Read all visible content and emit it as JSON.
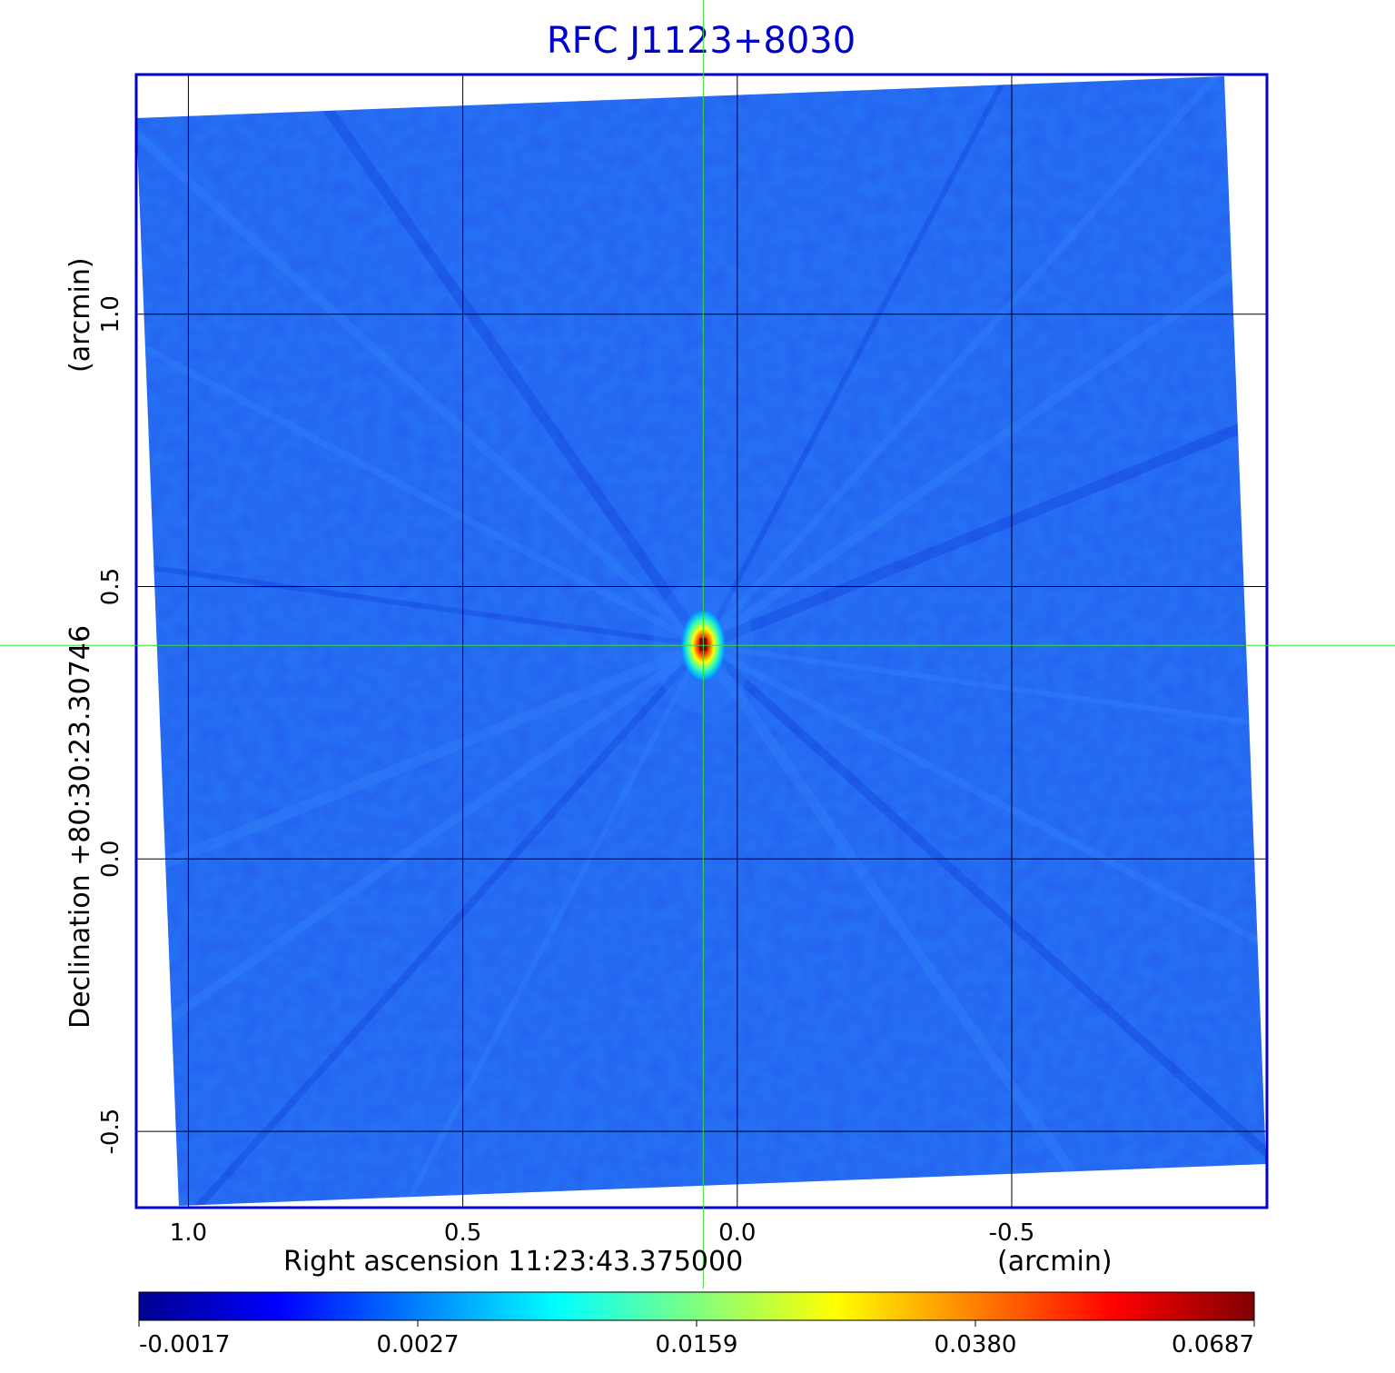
{
  "chart_data": {
    "type": "heatmap",
    "title": "RFC J1123+8030",
    "xlabel": "Right ascension  11:23:43.375000",
    "xunit": "(arcmin)",
    "ylabel": "Declination  +80:30:23.30746",
    "yunit": "(arcmin)",
    "xlim": [
      1.095,
      -0.965
    ],
    "ylim": [
      -0.64,
      1.44
    ],
    "x_ticks": [
      1.0,
      0.5,
      0.0,
      -0.5
    ],
    "x_tick_labels": [
      "1.0",
      "0.5",
      "0.0",
      "-0.5"
    ],
    "y_ticks": [
      -0.5,
      0.0,
      0.5,
      1.0
    ],
    "y_tick_labels": [
      "-0.5",
      "0.0",
      "0.5",
      "1.0"
    ],
    "grid": true,
    "crosshair": {
      "x": 0.062,
      "y": 0.392
    },
    "source_peak": {
      "x": 0.062,
      "y": 0.392,
      "value": 0.0687
    },
    "colorbar": {
      "tick_labels": [
        "-0.0017",
        "0.0027",
        "0.0159",
        "0.0380",
        "0.0687"
      ],
      "min": -0.0017,
      "max": 0.0687,
      "colors": [
        "#00008f",
        "#0000ff",
        "#0080ff",
        "#00ffff",
        "#80ff80",
        "#ffff00",
        "#ff8000",
        "#ff0000",
        "#800000"
      ]
    },
    "colors": {
      "title": "#0000cc",
      "frame": "#0000cc",
      "grid": "#000000",
      "crosshair": "#33dd33",
      "background_noise": "#1f5cf0"
    }
  }
}
